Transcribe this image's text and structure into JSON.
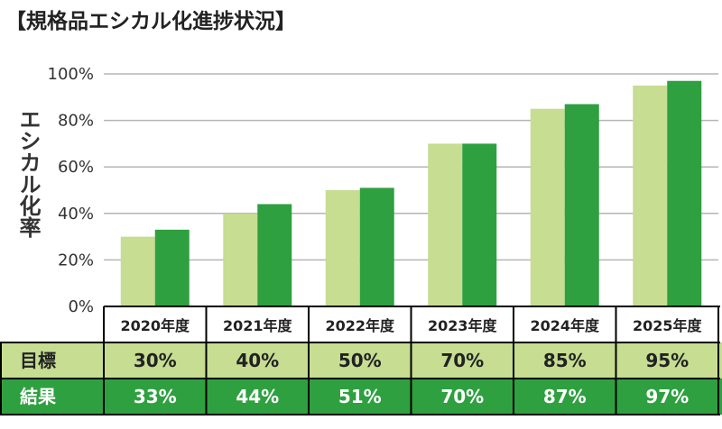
{
  "chart_data": {
    "type": "bar",
    "title": "【規格品エシカル化進捗状況】",
    "ylabel": "エシカル化率",
    "categories": [
      "2020年度",
      "2021年度",
      "2022年度",
      "2023年度",
      "2024年度",
      "2025年度"
    ],
    "ylim": [
      0,
      100
    ],
    "yticks": [
      "0%",
      "20%",
      "40%",
      "60%",
      "80%",
      "100%"
    ],
    "grid": true,
    "series": [
      {
        "name": "目標",
        "values": [
          30,
          40,
          50,
          70,
          85,
          95
        ],
        "labels": [
          "30%",
          "40%",
          "50%",
          "70%",
          "85%",
          "95%"
        ],
        "color": "#c6dd92"
      },
      {
        "name": "結果",
        "values": [
          33,
          44,
          51,
          70,
          87,
          97
        ],
        "labels": [
          "33%",
          "44%",
          "51%",
          "70%",
          "87%",
          "97%"
        ],
        "color": "#2ea040"
      }
    ],
    "colors": {
      "table_row1_bg": "#c6dd92",
      "table_row2_bg": "#2ea040",
      "grid": "#b5b5b5",
      "row2_text": "#ffffff"
    }
  }
}
